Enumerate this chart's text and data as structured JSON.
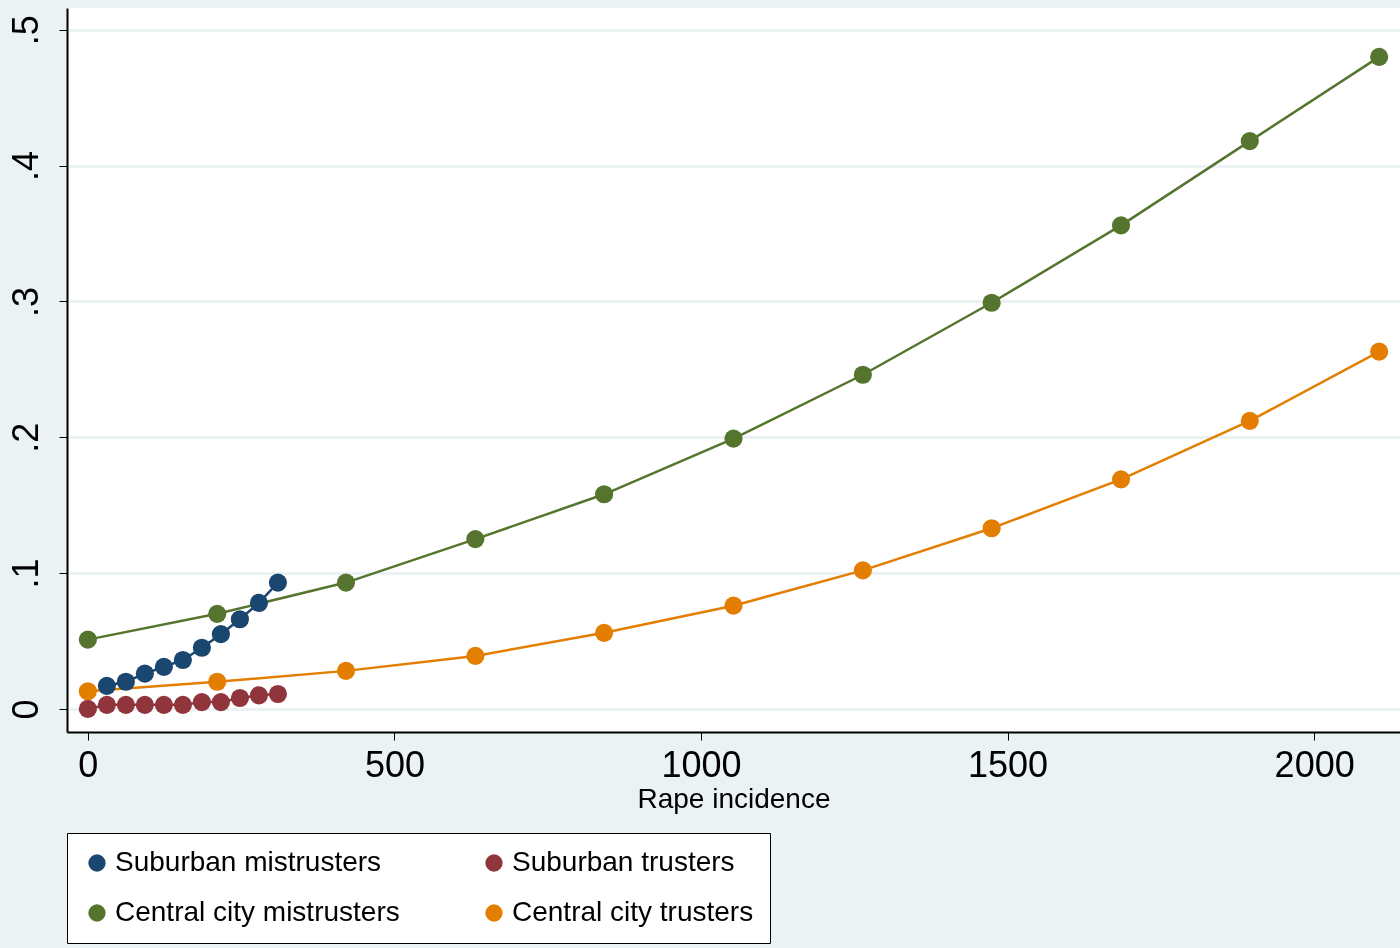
{
  "chart_data": {
    "type": "line",
    "xlabel": "Rape incidence",
    "xlim": [
      -34,
      2140
    ],
    "ylim": [
      -0.017,
      0.516
    ],
    "xticks": [
      0,
      500,
      1000,
      1500,
      2000
    ],
    "yticks": [
      {
        "value": 0,
        "label": "0"
      },
      {
        "value": 0.1,
        "label": ".1"
      },
      {
        "value": 0.2,
        "label": ".2"
      },
      {
        "value": 0.3,
        "label": ".3"
      },
      {
        "value": 0.4,
        "label": ".4"
      },
      {
        "value": 0.5,
        "label": ".5"
      }
    ],
    "grid": "y",
    "legend": "bottom",
    "marker": "circle",
    "line_style": "solid",
    "series": [
      {
        "name": "Suburban mistrusters",
        "color": "#1a476f",
        "x": [
          31,
          62,
          93,
          124,
          155,
          186,
          217,
          248,
          279,
          310
        ],
        "values": [
          0.017,
          0.02,
          0.026,
          0.031,
          0.036,
          0.045,
          0.055,
          0.066,
          0.078,
          0.093
        ]
      },
      {
        "name": "Suburban trusters",
        "color": "#90353b",
        "x": [
          0,
          31,
          62,
          93,
          124,
          155,
          186,
          217,
          248,
          279,
          310
        ],
        "values": [
          0,
          0.003,
          0.003,
          0.003,
          0.003,
          0.003,
          0.005,
          0.005,
          0.008,
          0.01,
          0.011
        ]
      },
      {
        "name": "Central city mistrusters",
        "color": "#55752f",
        "x": [
          0,
          211,
          421,
          632,
          842,
          1053,
          1264,
          1474,
          1685,
          1895,
          2106
        ],
        "values": [
          0.051,
          0.07,
          0.093,
          0.125,
          0.158,
          0.199,
          0.246,
          0.299,
          0.356,
          0.418,
          0.48
        ]
      },
      {
        "name": "Central city trusters",
        "color": "#e37e00",
        "x": [
          0,
          211,
          421,
          632,
          842,
          1053,
          1264,
          1474,
          1685,
          1895,
          2106
        ],
        "values": [
          0.013,
          0.02,
          0.028,
          0.039,
          0.056,
          0.076,
          0.102,
          0.133,
          0.169,
          0.212,
          0.263
        ]
      }
    ]
  }
}
